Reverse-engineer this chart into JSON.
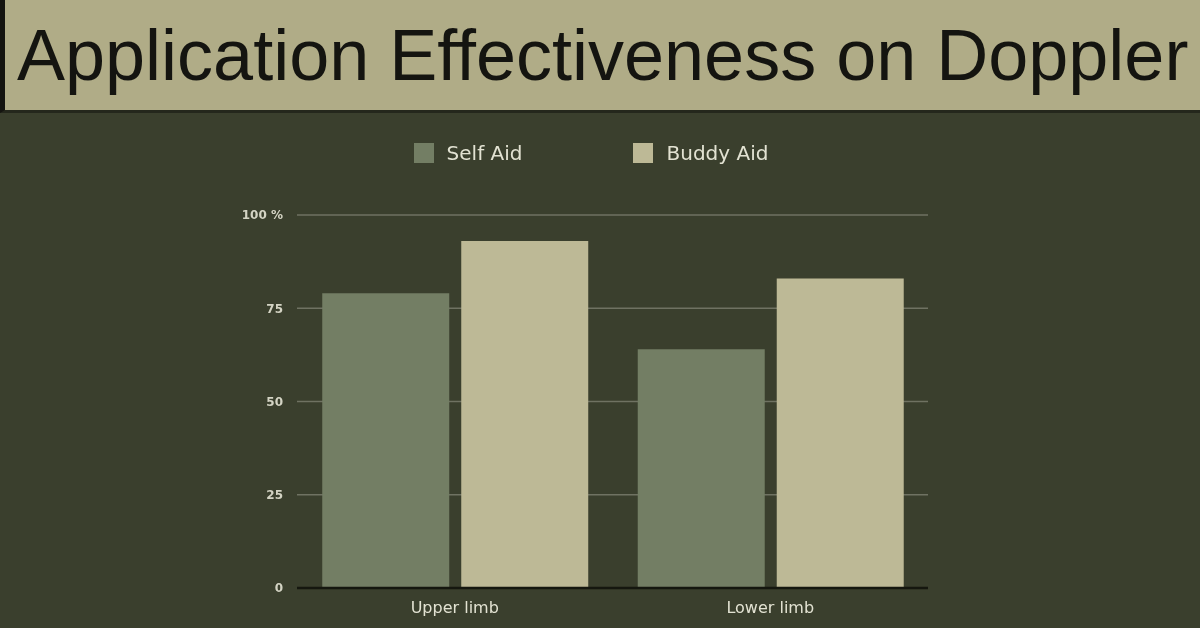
{
  "chart_data": {
    "type": "bar",
    "title": "Application Effectiveness on Doppler",
    "categories": [
      "Upper limb",
      "Lower limb"
    ],
    "series": [
      {
        "name": "Self Aid",
        "color": "#737e64",
        "values": [
          79,
          64
        ]
      },
      {
        "name": "Buddy Aid",
        "color": "#bdb996",
        "values": [
          93,
          83
        ]
      }
    ],
    "ylim": [
      0,
      100
    ],
    "yticks": [
      0,
      25,
      50,
      75,
      {
        "value": 100,
        "label": "100 %"
      }
    ],
    "grid": "y",
    "legend": "top"
  }
}
